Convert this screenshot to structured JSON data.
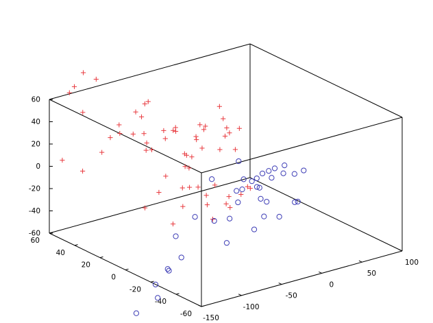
{
  "chart_data": {
    "type": "scatter3d",
    "title": "",
    "xlabel": "",
    "ylabel": "",
    "zlabel": "",
    "xlim": [
      -150,
      100
    ],
    "ylim": [
      -60,
      60
    ],
    "zlim": [
      -60,
      60
    ],
    "x_ticks": [
      -150,
      -100,
      -50,
      0,
      50,
      100
    ],
    "y_ticks": [
      -60,
      -40,
      -20,
      0,
      20,
      40,
      60
    ],
    "z_ticks": [
      -60,
      -40,
      -20,
      0,
      20,
      40,
      60
    ],
    "x_tick_labels": [
      "-150",
      "-100",
      "-50",
      "0",
      "50",
      "100"
    ],
    "y_tick_labels": [
      "-60",
      "-40",
      "-20",
      "0",
      "20",
      "40",
      "60"
    ],
    "z_tick_labels": [
      "-60",
      "-40",
      "-20",
      "0",
      "20",
      "40",
      "60"
    ],
    "grid": false,
    "box": true,
    "series": [
      {
        "marker": "plus",
        "color": "#e8383d",
        "points": [
          [
            -137,
            58,
            4
          ],
          [
            -148,
            35,
            9
          ],
          [
            -113,
            42,
            15
          ],
          [
            -93,
            48,
            21
          ],
          [
            -97,
            38,
            31
          ],
          [
            -121,
            52,
            47
          ],
          [
            -125,
            60,
            61
          ],
          [
            -122,
            58,
            67
          ],
          [
            -114,
            56,
            79
          ],
          [
            -98,
            56,
            70
          ],
          [
            -131,
            17,
            57
          ],
          [
            -122,
            5,
            69
          ],
          [
            -104,
            21,
            61
          ],
          [
            -79,
            27,
            62
          ],
          [
            -69,
            36,
            53
          ],
          [
            -93,
            30,
            34
          ],
          [
            -89,
            24,
            37
          ],
          [
            -84,
            25,
            27
          ],
          [
            -80,
            28,
            18
          ],
          [
            -73,
            28,
            17
          ],
          [
            -96,
            4,
            52
          ],
          [
            -81,
            6,
            48
          ],
          [
            -75,
            16,
            34
          ],
          [
            -67,
            13,
            44
          ],
          [
            -62,
            16,
            38
          ],
          [
            -70,
            4,
            26
          ],
          [
            -66,
            3,
            13
          ],
          [
            -63,
            8,
            11
          ],
          [
            -58,
            10,
            19
          ],
          [
            -63,
            -8,
            56
          ],
          [
            -57,
            -3,
            49
          ],
          [
            -54,
            2,
            50
          ],
          [
            -51,
            7,
            36
          ],
          [
            -45,
            6,
            25
          ],
          [
            -41,
            13,
            28
          ],
          [
            -47,
            -9,
            71
          ],
          [
            -44,
            -10,
            60
          ],
          [
            -38,
            -9,
            50
          ],
          [
            -33,
            -8,
            44
          ],
          [
            -27,
            -12,
            49
          ],
          [
            -29,
            -2,
            37
          ],
          [
            -26,
            4,
            21
          ],
          [
            -21,
            -5,
            25
          ],
          [
            -31,
            23,
            5
          ],
          [
            -54,
            29,
            -11
          ],
          [
            -60,
            12,
            -11
          ],
          [
            -50,
            6,
            -9
          ],
          [
            -48,
            -6,
            -1
          ],
          [
            -53,
            35,
            -29
          ],
          [
            -37,
            21,
            -20
          ],
          [
            -35,
            9,
            -21
          ],
          [
            -53,
            46,
            -49
          ],
          [
            -39,
            25,
            -39
          ],
          [
            -26,
            14,
            -34
          ],
          [
            -27,
            9,
            -44
          ],
          [
            -37,
            34,
            -60
          ],
          [
            -15,
            6,
            -31
          ],
          [
            -10,
            7,
            -26
          ],
          [
            -6,
            0,
            -21
          ],
          [
            -1,
            -2,
            -14
          ],
          [
            4,
            -1,
            -17
          ],
          [
            -7,
            8,
            -37
          ]
        ]
      },
      {
        "marker": "circle",
        "color": "#3b3bb5",
        "points": [
          [
            10,
            12,
            -1
          ],
          [
            5,
            30,
            -26
          ],
          [
            17,
            6,
            -17
          ],
          [
            21,
            15,
            -21
          ],
          [
            27,
            4,
            -11
          ],
          [
            36,
            0,
            -6
          ],
          [
            38,
            6,
            -12
          ],
          [
            45,
            -2,
            -4
          ],
          [
            31,
            11,
            -20
          ],
          [
            40,
            5,
            -18
          ],
          [
            28,
            9,
            -26
          ],
          [
            42,
            -3,
            -10
          ],
          [
            20,
            20,
            -34
          ],
          [
            36,
            12,
            -30
          ],
          [
            48,
            -8,
            -9
          ],
          [
            16,
            13,
            -28
          ],
          [
            28,
            6,
            -35
          ],
          [
            37,
            7,
            -40
          ],
          [
            53,
            -5,
            -37
          ],
          [
            60,
            -3,
            -39
          ],
          [
            6,
            10,
            -36
          ],
          [
            13,
            21,
            -58
          ],
          [
            48,
            4,
            -54
          ],
          [
            40,
            11,
            -56
          ],
          [
            42,
            20,
            -73
          ],
          [
            22,
            29,
            -86
          ],
          [
            3,
            42,
            -66
          ],
          [
            8,
            30,
            -64
          ],
          [
            -2,
            54,
            -89
          ],
          [
            -25,
            35,
            -93
          ],
          [
            -31,
            42,
            -106
          ],
          [
            -24,
            56,
            -129
          ],
          [
            -20,
            48,
            -113
          ],
          [
            -15,
            60,
            -145
          ],
          [
            -48,
            56,
            -150
          ],
          [
            50,
            -14,
            -3
          ]
        ]
      }
    ]
  }
}
